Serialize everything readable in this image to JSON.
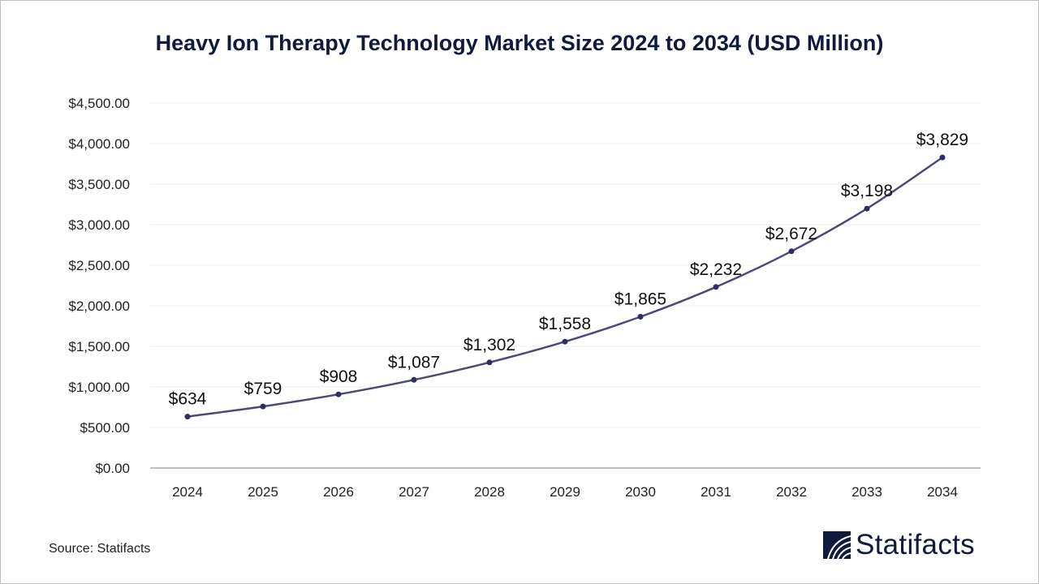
{
  "chart_data": {
    "type": "line",
    "title": "Heavy Ion Therapy Technology Market Size 2024 to 2034 (USD Million)",
    "categories": [
      "2024",
      "2025",
      "2026",
      "2027",
      "2028",
      "2029",
      "2030",
      "2031",
      "2032",
      "2033",
      "2034"
    ],
    "values": [
      634,
      759,
      908,
      1087,
      1302,
      1558,
      1865,
      2232,
      2672,
      3198,
      3829
    ],
    "data_labels": [
      "$634",
      "$759",
      "$908",
      "$1,087",
      "$1,302",
      "$1,558",
      "$1,865",
      "$2,232",
      "$2,672",
      "$3,198",
      "$3,829"
    ],
    "ylim": [
      0,
      4500
    ],
    "yticks": [
      0,
      500,
      1000,
      1500,
      2000,
      2500,
      3000,
      3500,
      4000,
      4500
    ],
    "ytick_labels": [
      "$0.00",
      "$500.00",
      "$1,000.00",
      "$1,500.00",
      "$2,000.00",
      "$2,500.00",
      "$3,000.00",
      "$3,500.00",
      "$4,000.00",
      "$4,500.00"
    ],
    "xlabel": "",
    "ylabel": "",
    "grid": true,
    "line_color": "#4a4a78"
  },
  "footer": {
    "source": "Source: Statifacts",
    "brand": "Statifacts"
  }
}
